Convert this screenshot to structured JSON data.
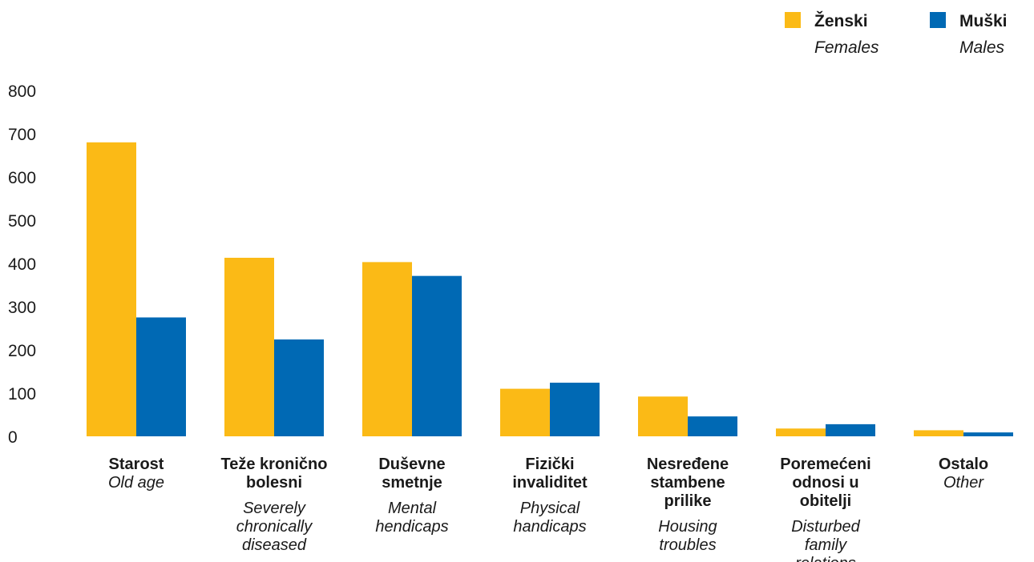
{
  "chart_data": {
    "type": "bar",
    "ylim": [
      0,
      800
    ],
    "yticks": [
      0,
      100,
      200,
      300,
      400,
      500,
      600,
      700,
      800
    ],
    "grid": false,
    "legend_position": "top-right",
    "categories": [
      {
        "label": "Starost",
        "sublabel": "Old age"
      },
      {
        "label": "Teže kronično bolesni",
        "sublabel": "Severely chronically diseased"
      },
      {
        "label": "Duševne smetnje",
        "sublabel": "Mental hendicaps"
      },
      {
        "label": "Fizički invaliditet",
        "sublabel": "Physical handicaps"
      },
      {
        "label": "Nesređene stambene prilike",
        "sublabel": "Housing troubles"
      },
      {
        "label": "Poremećeni odnosi u obitelji",
        "sublabel": "Disturbed family relations"
      },
      {
        "label": "Ostalo",
        "sublabel": "Other"
      }
    ],
    "series": [
      {
        "name": "Ženski",
        "name_en": "Females",
        "color": "#FBBA16",
        "values": [
          680,
          413,
          403,
          110,
          92,
          18,
          14
        ]
      },
      {
        "name": "Muški",
        "name_en": "Males",
        "color": "#0069B4",
        "values": [
          275,
          224,
          371,
          124,
          46,
          28,
          9
        ]
      }
    ]
  }
}
